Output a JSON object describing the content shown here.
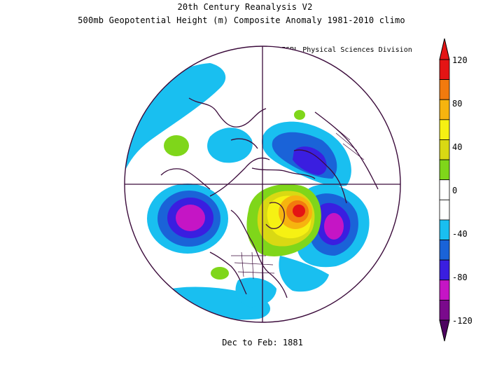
{
  "header": {
    "line1": "20th Century Reanalysis V2",
    "line2": "500mb Geopotential Height (m) Composite Anomaly 1981-2010 climo",
    "credit": "NOAA/ESRL Physical Sciences Division"
  },
  "footer": {
    "period": "Dec to Feb: 1881"
  },
  "colorbar": {
    "tick_labels": [
      "120",
      "80",
      "40",
      "0",
      "-40",
      "-80",
      "-120"
    ],
    "colors": [
      "#7a0a8c",
      "#c515c5",
      "#3a1ee0",
      "#1a63d8",
      "#19bff0",
      "#ffffff",
      "#ffffff",
      "#7fd61a",
      "#d9d913",
      "#f6f113",
      "#f6b40f",
      "#f27a0e",
      "#e41414"
    ]
  },
  "map_data": {
    "projection": "north-polar-stereographic",
    "variable": "500mb geopotential height anomaly",
    "units": "m",
    "anomaly_features": [
      {
        "region": "north-pacific",
        "sign": "negative",
        "peak_m": -90
      },
      {
        "region": "north-atlantic",
        "sign": "negative",
        "peak_m": -90
      },
      {
        "region": "northern-europe-scandinavia",
        "sign": "negative",
        "peak_m": -60
      },
      {
        "region": "canada-hudson-bay",
        "sign": "positive",
        "peak_m": 130
      },
      {
        "region": "siberia",
        "sign": "positive",
        "peak_m": 45
      }
    ]
  }
}
